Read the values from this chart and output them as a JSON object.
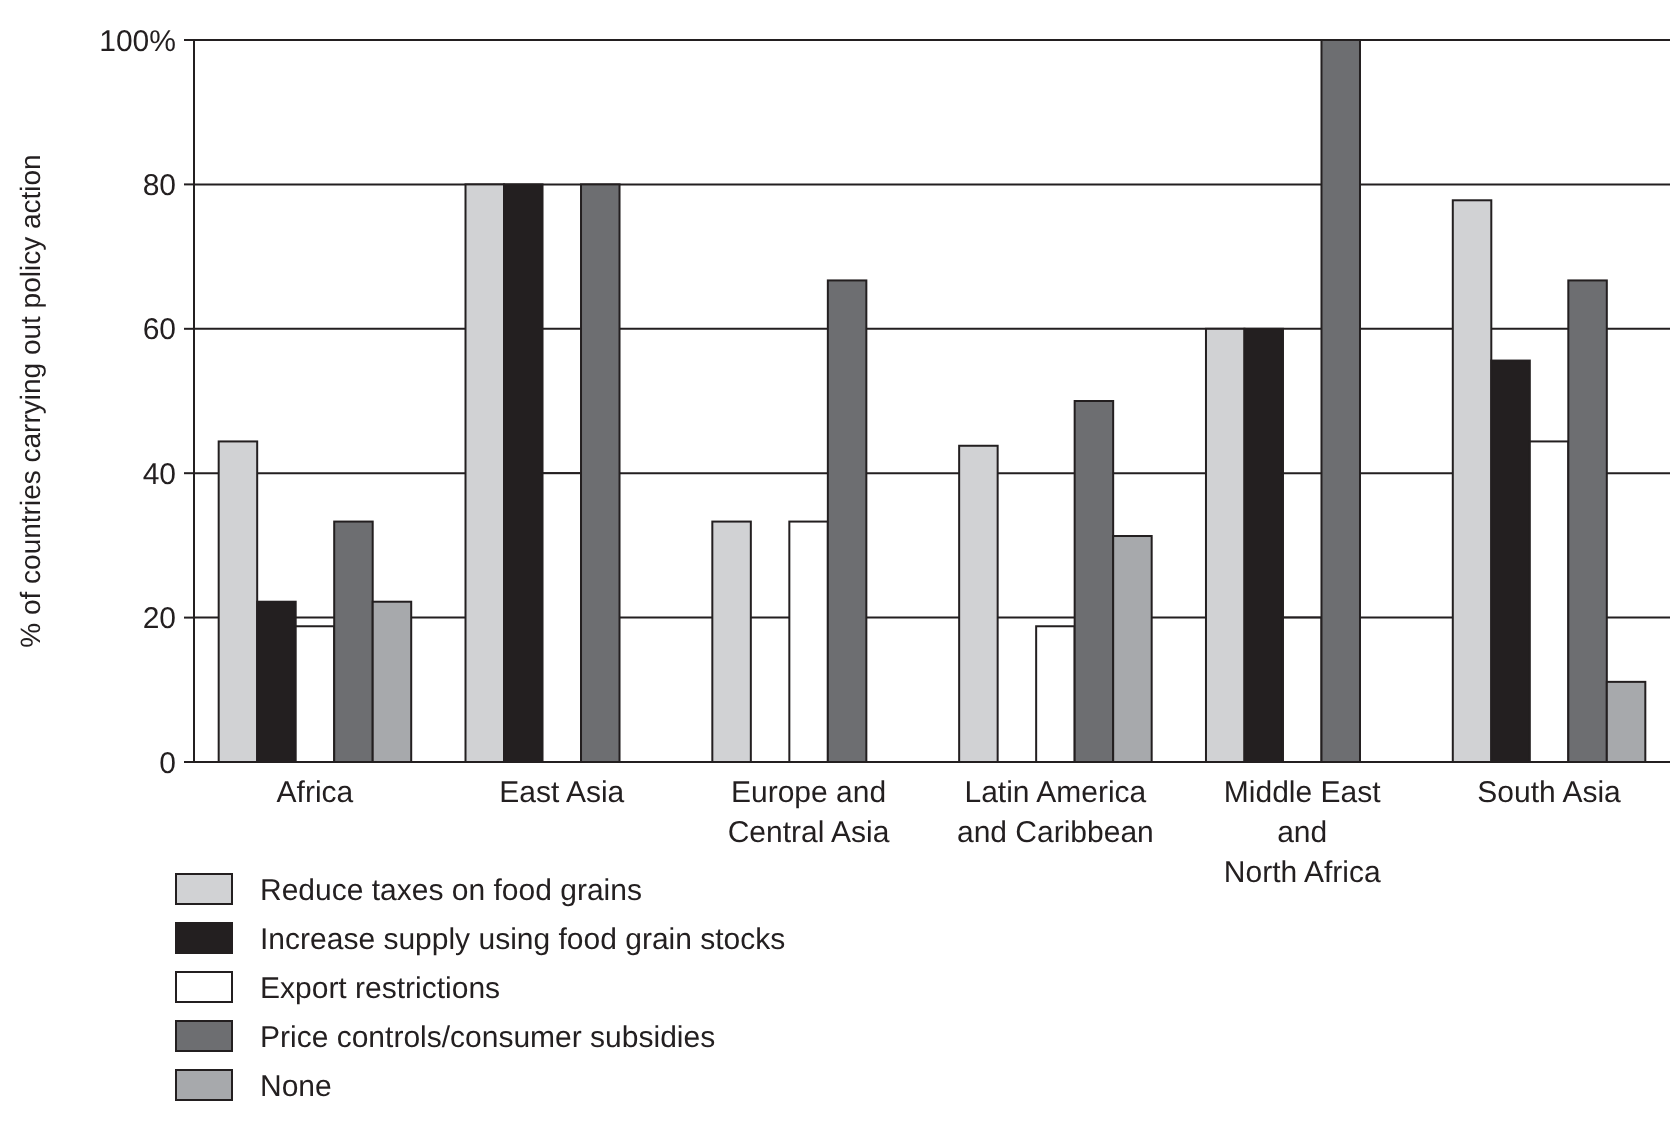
{
  "chart_data": {
    "type": "bar",
    "ylabel": "% of countries carrying out policy action",
    "categories": [
      "Africa",
      "East Asia",
      "Europe and\nCentral Asia",
      "Latin America\nand Caribbean",
      "Middle East\nand\nNorth Africa",
      "South Asia"
    ],
    "series": [
      {
        "name": "Reduce taxes on food grains",
        "color": "#d1d2d4",
        "values": [
          44.4,
          80,
          33.3,
          43.8,
          60,
          77.8
        ]
      },
      {
        "name": "Increase supply using food grain stocks",
        "color": "#231f20",
        "values": [
          22.2,
          80,
          null,
          null,
          60,
          55.6
        ]
      },
      {
        "name": "Export restrictions",
        "color": "#ffffff",
        "values": [
          18.8,
          40,
          33.3,
          18.8,
          20,
          44.4
        ]
      },
      {
        "name": "Price controls/consumer subsidies",
        "color": "#6d6e71",
        "values": [
          33.3,
          80,
          66.7,
          50,
          100,
          66.7
        ]
      },
      {
        "name": "None",
        "color": "#a7a9ac",
        "values": [
          22.2,
          null,
          null,
          31.3,
          null,
          11.1
        ]
      }
    ],
    "ylim": [
      0,
      100
    ],
    "yticks": [
      0,
      20,
      40,
      60,
      80,
      {
        "value": 100,
        "label": "100%"
      }
    ],
    "grid": "y",
    "legend": "bottom left"
  }
}
